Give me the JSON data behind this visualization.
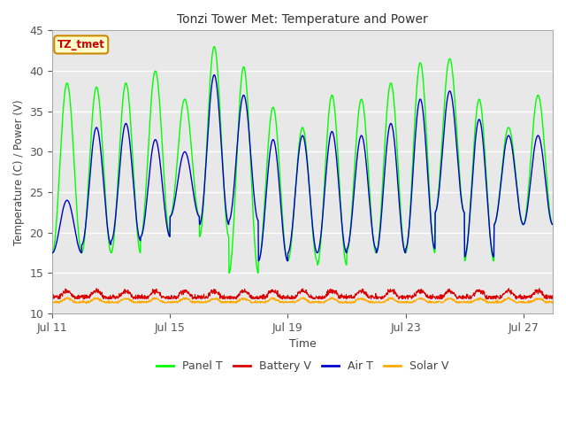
{
  "title": "Tonzi Tower Met: Temperature and Power",
  "xlabel": "Time",
  "ylabel": "Temperature (C) / Power (V)",
  "ylim": [
    10,
    45
  ],
  "yticks": [
    10,
    15,
    20,
    25,
    30,
    35,
    40,
    45
  ],
  "x_tick_labels": [
    "Jul 11",
    "Jul 15",
    "Jul 19",
    "Jul 23",
    "Jul 27"
  ],
  "x_tick_positions": [
    0,
    4,
    8,
    12,
    16
  ],
  "fig_bg_color": "#ffffff",
  "plot_bg_color": "#e8e8e8",
  "plot_inner_bg": "#f0f0f0",
  "grid_color": "#ffffff",
  "panel_t_color": "#00ff00",
  "air_t_color": "#0000cc",
  "battery_v_color": "#dd0000",
  "solar_v_color": "#ffaa00",
  "label_box_facecolor": "#ffffcc",
  "label_box_edgecolor": "#cc8800",
  "label_text": "TZ_tmet",
  "label_text_color": "#cc0000",
  "n_days": 17,
  "points_per_day": 96,
  "panel_t_day_peaks": [
    38.5,
    38.0,
    38.5,
    40.0,
    36.5,
    43.0,
    40.5,
    35.5,
    33.0,
    37.0,
    36.5,
    38.5,
    41.0,
    41.5,
    36.5,
    33.0,
    37.0
  ],
  "panel_t_night_troughs": [
    17.5,
    17.5,
    17.5,
    19.5,
    22.0,
    19.5,
    15.0,
    16.5,
    16.5,
    16.0,
    17.5,
    17.5,
    17.5,
    22.5,
    16.5,
    21.0,
    21.0
  ],
  "air_t_day_peaks": [
    24.0,
    33.0,
    33.5,
    31.5,
    30.0,
    39.5,
    37.0,
    31.5,
    32.0,
    32.5,
    32.0,
    33.5,
    36.5,
    37.5,
    34.0,
    32.0,
    32.0
  ],
  "air_t_night_troughs": [
    17.5,
    18.5,
    19.0,
    19.5,
    22.0,
    21.0,
    21.5,
    16.5,
    17.5,
    17.5,
    18.0,
    17.5,
    18.0,
    22.5,
    17.0,
    21.0,
    21.0
  ],
  "battery_v_base": 12.0,
  "battery_v_amp": 0.8,
  "solar_v_base": 11.4,
  "solar_v_amp": 0.45,
  "figsize": [
    6.4,
    4.8
  ],
  "dpi": 100
}
